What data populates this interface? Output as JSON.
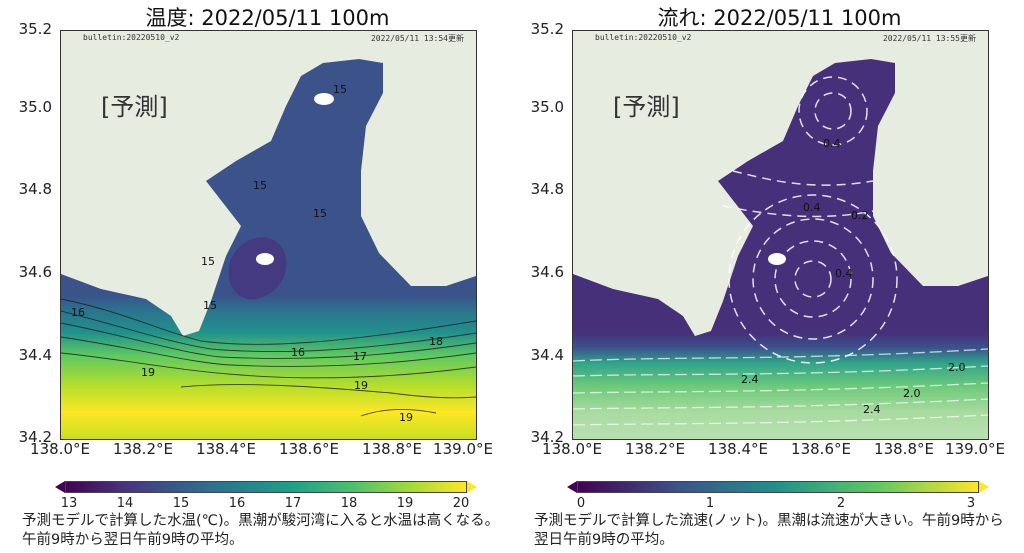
{
  "panels": [
    {
      "title": "温度: 2022/05/11  100m",
      "bulletin": "bulletin:20220510_v2",
      "updated": "2022/05/11 13:54更新",
      "forecast_label": "[予測]",
      "y_ticks": [
        "35.2",
        "35.0",
        "34.8",
        "34.6",
        "34.4",
        "34.2"
      ],
      "x_ticks": [
        "138.0°E",
        "138.2°E",
        "138.4°E",
        "138.6°E",
        "138.8°E",
        "139.0°E"
      ],
      "colorbar_ticks": [
        "13",
        "14",
        "15",
        "16",
        "17",
        "18",
        "19",
        "20"
      ],
      "contour_labels": [
        "15",
        "15",
        "15",
        "15",
        "15",
        "16",
        "16",
        "17",
        "18",
        "19",
        "19",
        "19"
      ],
      "caption": "予測モデルで計算した水温(℃)。黒潮が駿河湾に入ると水温は高くなる。午前9時から翌日午前9時の平均。"
    },
    {
      "title": "流れ: 2022/05/11  100m",
      "bulletin": "bulletin:20220510_v2",
      "updated": "2022/05/11 13:55更新",
      "forecast_label": "[予測]",
      "y_ticks": [
        "35.2",
        "35.0",
        "34.8",
        "34.6",
        "34.4",
        "34.2"
      ],
      "x_ticks": [
        "138.0°E",
        "138.2°E",
        "138.4°E",
        "138.6°E",
        "138.8°E",
        "139.0°E"
      ],
      "colorbar_ticks": [
        "0",
        "1",
        "2",
        "3"
      ],
      "contour_labels": [
        "0.4",
        "0.4",
        "0.2",
        "0.4",
        "2.0",
        "2.0",
        "2.4",
        "2.4"
      ],
      "caption": "予測モデルで計算した流速(ノット)。黒潮は流速が大きい。午前9時から翌日午前9時の平均。"
    }
  ],
  "colors": {
    "land": "#e7ece1",
    "temp_13": "#440154",
    "temp_15": "#3b528b",
    "temp_16": "#21918c",
    "temp_18": "#5ec962",
    "temp_20": "#fde725",
    "speed_0": "#440154",
    "speed_3": "#fde725"
  }
}
